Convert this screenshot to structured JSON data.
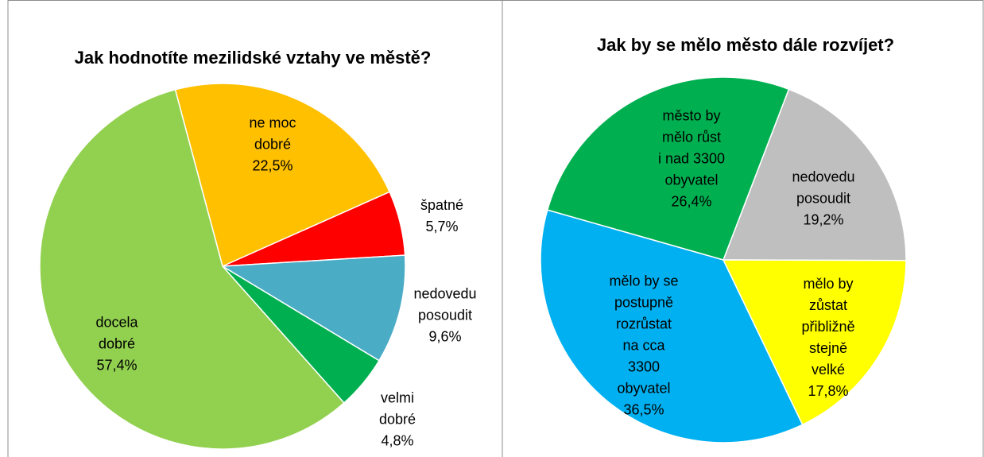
{
  "chart_data": [
    {
      "type": "pie",
      "title": "Jak hodnotíte mezilidské vztahy ve městě?",
      "categories": [
        "ne moc\ndobré",
        "špatné",
        "nedovedu\nposoudit",
        "velmi\ndobré",
        "docela\ndobré"
      ],
      "values": [
        22.5,
        5.7,
        9.6,
        4.8,
        57.4
      ],
      "value_labels": [
        "22,5%",
        "5,7%",
        "9,6%",
        "4,8%",
        "57,4%"
      ],
      "colors": [
        "#ffc000",
        "#ff0000",
        "#4bacc6",
        "#00b050",
        "#92d050"
      ]
    },
    {
      "type": "pie",
      "title": "Jak by se mělo město dále rozvíjet?",
      "categories": [
        "nedovedu\nposoudit",
        "mělo by\nzůstat\npřibližně\nstejně\nvelké",
        "mělo by se\npostupně\nrozrůstat\nna cca\n3300\nobyvatel",
        "město by\nmělo růst\ni nad 3300\nobyvatel"
      ],
      "values": [
        19.2,
        17.8,
        36.5,
        26.4
      ],
      "value_labels": [
        "19,2%",
        "17,8%",
        "36,5%",
        "26,4%"
      ],
      "colors": [
        "#bfbfbf",
        "#ffff00",
        "#00b0f0",
        "#00b050"
      ]
    }
  ]
}
